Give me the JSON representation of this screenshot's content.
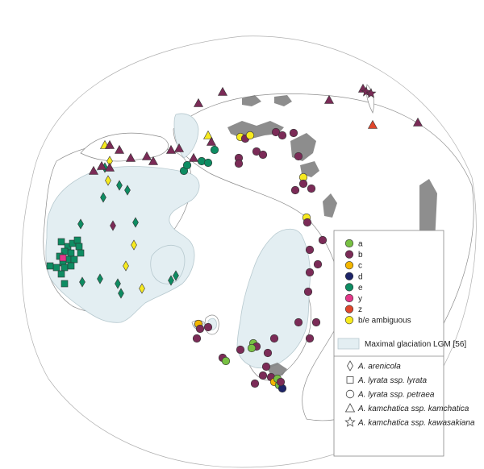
{
  "map": {
    "colors": {
      "land_fill": "#ffffff",
      "coast_line": "#8c8c8c",
      "glaciation_fill": "#e3eef2",
      "glaciation_edge": "#b7c9cf",
      "mountains": "#7a7a7a",
      "marker_stroke": "#333333"
    }
  },
  "legend": {
    "clusters": [
      {
        "key": "a",
        "label": "a",
        "color": "#78c043"
      },
      {
        "key": "b",
        "label": "b",
        "color": "#7b2b57"
      },
      {
        "key": "c",
        "label": "c",
        "color": "#f3b600"
      },
      {
        "key": "d",
        "label": "d",
        "color": "#1d2468"
      },
      {
        "key": "e",
        "label": "e",
        "color": "#0e8c62"
      },
      {
        "key": "y",
        "label": "y",
        "color": "#e4388a"
      },
      {
        "key": "z",
        "label": "z",
        "color": "#e0462b"
      },
      {
        "key": "ambig",
        "label": "b/e ambiguous",
        "color": "#f7ea1f"
      }
    ],
    "glaciation_label": "Maximal glaciation LGM [56]",
    "taxa": [
      {
        "shape": "diamond",
        "label": "A. arenicola"
      },
      {
        "shape": "square",
        "label": "A. lyrata ssp. lyrata"
      },
      {
        "shape": "circle",
        "label": "A. lyrata ssp. petraea"
      },
      {
        "shape": "triangle",
        "label": "A. kamchatica ssp. kamchatica"
      },
      {
        "shape": "star",
        "label": "A. kamchatica ssp. kawasakiana"
      }
    ]
  }
}
